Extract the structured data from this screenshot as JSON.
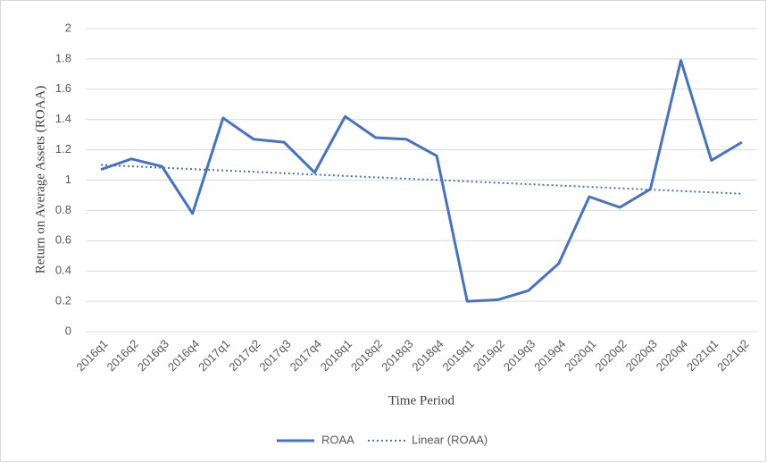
{
  "chart_data": {
    "type": "line",
    "x_label": "Time Period",
    "y_label": "Return on Average Assets (ROAA)",
    "categories": [
      "2016q1",
      "2016q2",
      "2016q3",
      "2016q4",
      "2017q1",
      "2017q2",
      "2017q3",
      "2017q4",
      "2018q1",
      "2018q2",
      "2018q3",
      "2018q4",
      "2019q1",
      "2019q2",
      "2019q3",
      "2019q4",
      "2020q1",
      "2020q2",
      "2020q3",
      "2020q4",
      "2021q1",
      "2021q2"
    ],
    "series": [
      {
        "name": "ROAA",
        "color": "#4472c4",
        "values": [
          1.07,
          1.14,
          1.09,
          0.78,
          1.41,
          1.27,
          1.25,
          1.05,
          1.42,
          1.28,
          1.27,
          1.16,
          0.2,
          0.21,
          0.27,
          0.45,
          0.89,
          0.82,
          0.94,
          1.79,
          1.13,
          1.25
        ]
      }
    ],
    "trendline": {
      "name": "Linear (ROAA)",
      "color": "#4472c4",
      "values": [
        1.1,
        0.91
      ]
    },
    "ylim": [
      0,
      2
    ],
    "yticks": [
      0,
      0.2,
      0.4,
      0.6,
      0.8,
      1,
      1.2,
      1.4,
      1.6,
      1.8,
      2
    ],
    "grid": true,
    "legend": "bottom"
  }
}
